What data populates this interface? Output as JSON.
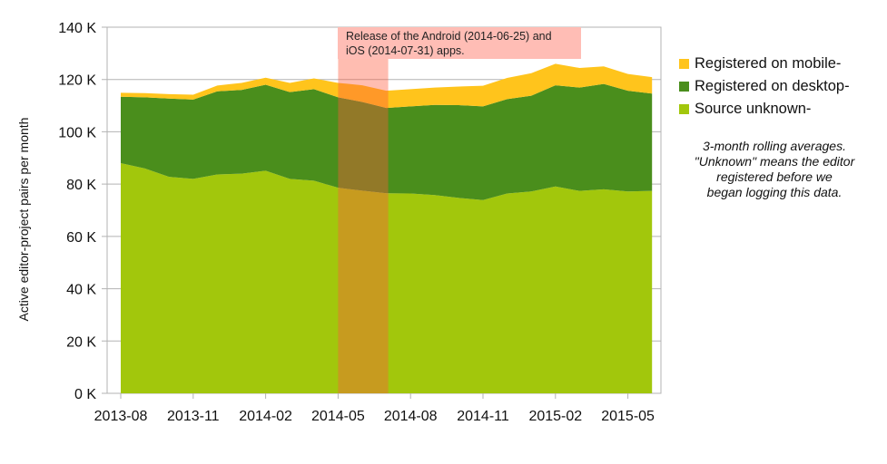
{
  "chart_data": {
    "type": "area",
    "stacked": true,
    "title": "",
    "xlabel": "",
    "ylabel": "Active editor-project pairs per month",
    "ylim": [
      0,
      140
    ],
    "yticks": [
      0,
      20,
      40,
      60,
      80,
      100,
      120,
      140
    ],
    "ytick_labels": [
      "0 K",
      "20 K",
      "40 K",
      "60 K",
      "80 K",
      "100 K",
      "120 K",
      "140 K"
    ],
    "xtick_labels": [
      "2013-08",
      "2013-11",
      "2014-02",
      "2014-05",
      "2014-08",
      "2014-11",
      "2015-02",
      "2015-05"
    ],
    "grid": "horizontal",
    "legend_position": "right",
    "x": [
      "2013-08",
      "2013-09",
      "2013-10",
      "2013-11",
      "2013-12",
      "2014-01",
      "2014-02",
      "2014-03",
      "2014-04",
      "2014-05",
      "2014-06",
      "2014-07",
      "2014-08",
      "2014-09",
      "2014-10",
      "2014-11",
      "2014-12",
      "2015-01",
      "2015-02",
      "2015-03",
      "2015-04",
      "2015-05",
      "2015-06"
    ],
    "series": [
      {
        "name": "Source unknown-",
        "color": "#a2c70c",
        "values": [
          88.0,
          86.0,
          82.8,
          82.0,
          83.7,
          84.0,
          85.1,
          82.0,
          81.3,
          78.6,
          77.5,
          76.5,
          76.4,
          75.8,
          74.7,
          73.9,
          76.4,
          77.2,
          79.1,
          77.4,
          78.0,
          77.2,
          77.4
        ]
      },
      {
        "name": "Registered on desktop-",
        "color": "#4a8e1c",
        "values": [
          25.4,
          27.2,
          29.9,
          30.3,
          31.8,
          32.0,
          32.9,
          33.2,
          35.0,
          34.6,
          33.9,
          32.6,
          33.3,
          34.5,
          35.5,
          35.8,
          36.1,
          36.6,
          38.7,
          39.5,
          40.3,
          38.5,
          37.2
        ]
      },
      {
        "name": "Registered on mobile-",
        "color": "#ffc41c",
        "values": [
          1.5,
          1.6,
          1.7,
          1.9,
          2.2,
          2.7,
          2.7,
          3.5,
          4.1,
          5.5,
          6.4,
          6.6,
          6.6,
          6.6,
          7.1,
          7.9,
          8.1,
          8.6,
          8.2,
          7.5,
          6.7,
          6.4,
          6.3
        ]
      }
    ],
    "highlight": {
      "start": "2014-05",
      "end": "2014-07",
      "color": "#ff5a3c"
    },
    "annotation": {
      "line1": "Release of the Android (2014-06-25) and",
      "line2": "iOS (2014-07-31) apps."
    },
    "note": [
      "3-month rolling averages.",
      "\"Unknown\" means the editor",
      "registered before we",
      "began logging this data."
    ]
  }
}
